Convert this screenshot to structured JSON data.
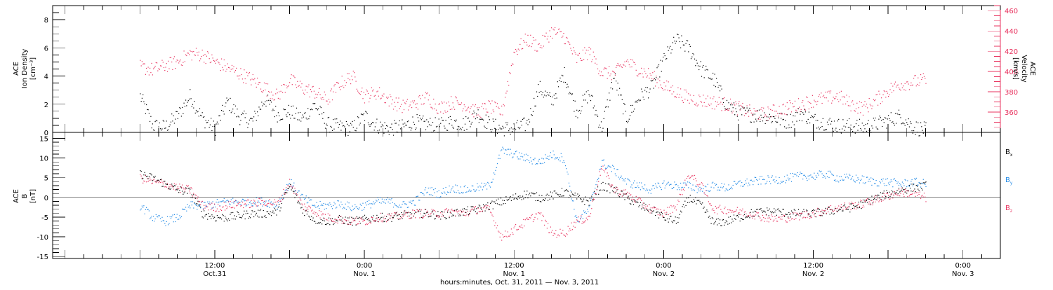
{
  "chart_data": [
    {
      "type": "scatter",
      "panel": "top",
      "ylabel_left": [
        "ACE",
        "Ion Density",
        "[cm⁻³]"
      ],
      "ylabel_right": [
        "ACE",
        "Velocity",
        "[km/s]"
      ],
      "ylim_left": [
        0,
        9
      ],
      "yticks_left": [
        "0",
        "2",
        "4",
        "6",
        "8"
      ],
      "ylim_right": [
        340,
        465
      ],
      "yticks_right": [
        "360",
        "380",
        "400",
        "420",
        "440",
        "460"
      ],
      "series": [
        {
          "axis": "left",
          "color": "#000000",
          "x": [
            0,
            2,
            4,
            6,
            8,
            10,
            12,
            14,
            16,
            18,
            20,
            22,
            24,
            26,
            28,
            30,
            32,
            34,
            36,
            38,
            40,
            42,
            44,
            46,
            48,
            50,
            52,
            54,
            56,
            58,
            60,
            62,
            64,
            66,
            68,
            70,
            72,
            74,
            76,
            78,
            80,
            82,
            84,
            86,
            88,
            90,
            92,
            94,
            96,
            98,
            100,
            102,
            104,
            106,
            108,
            110,
            112,
            114,
            116,
            118,
            120,
            122,
            124,
            126
          ],
          "y": [
            2.6,
            0.5,
            0.4,
            1.2,
            2.6,
            1.0,
            0.3,
            2.2,
            1.1,
            0.8,
            2.4,
            1.3,
            1.5,
            1.0,
            2.0,
            0.6,
            0.4,
            0.3,
            1.2,
            0.5,
            0.3,
            0.4,
            0.8,
            0.6,
            0.5,
            0.8,
            0.6,
            1.4,
            0.6,
            0.3,
            0.3,
            0.6,
            3.2,
            2.2,
            4.2,
            1.5,
            2.8,
            0.3,
            4.0,
            1.0,
            2.5,
            3.2,
            5.2,
            6.6,
            6.0,
            4.5,
            3.8,
            2.0,
            1.4,
            1.3,
            1.2,
            1.0,
            0.8,
            1.4,
            0.9,
            0.7,
            0.5,
            0.5,
            0.4,
            0.6,
            0.9,
            1.2,
            0.4,
            0.2
          ]
        },
        {
          "axis": "right",
          "color": "#e8335f",
          "x": [
            0,
            2,
            4,
            6,
            8,
            10,
            12,
            14,
            16,
            18,
            20,
            22,
            24,
            26,
            28,
            30,
            32,
            34,
            36,
            38,
            40,
            42,
            44,
            46,
            48,
            50,
            52,
            54,
            56,
            58,
            60,
            62,
            64,
            66,
            68,
            70,
            72,
            74,
            76,
            78,
            80,
            82,
            84,
            86,
            88,
            90,
            92,
            94,
            96,
            98,
            100,
            102,
            104,
            106,
            108,
            110,
            112,
            114,
            116,
            118,
            120,
            122,
            124,
            126
          ],
          "y": [
            405,
            402,
            406,
            410,
            418,
            417,
            410,
            404,
            398,
            392,
            384,
            376,
            392,
            384,
            380,
            372,
            388,
            396,
            376,
            380,
            372,
            366,
            368,
            375,
            364,
            370,
            368,
            360,
            366,
            360,
            420,
            432,
            425,
            440,
            435,
            412,
            420,
            400,
            398,
            410,
            402,
            396,
            386,
            380,
            374,
            372,
            370,
            368,
            364,
            360,
            358,
            362,
            365,
            368,
            372,
            374,
            376,
            368,
            364,
            372,
            382,
            388,
            390,
            392
          ]
        }
      ]
    },
    {
      "type": "scatter",
      "panel": "bottom",
      "ylabel_left": [
        "ACE",
        "B",
        "[nT]"
      ],
      "ylim": [
        -15.5,
        16.5
      ],
      "yticks": [
        "-15",
        "-10",
        "-5",
        "0",
        "5",
        "10",
        "15"
      ],
      "zero_line": true,
      "legend": [
        "B",
        "B",
        "B"
      ],
      "legend_subscripts": [
        "x",
        "y",
        "z"
      ],
      "legend_placement": "right",
      "series": [
        {
          "name": "Bx",
          "color": "#000000",
          "x": [
            0,
            2,
            4,
            6,
            8,
            10,
            12,
            14,
            16,
            18,
            20,
            22,
            24,
            26,
            28,
            30,
            32,
            34,
            36,
            38,
            40,
            42,
            44,
            46,
            48,
            50,
            52,
            54,
            56,
            58,
            60,
            62,
            64,
            66,
            68,
            70,
            72,
            74,
            76,
            78,
            80,
            82,
            84,
            86,
            88,
            90,
            92,
            94,
            96,
            98,
            100,
            102,
            104,
            106,
            108,
            110,
            112,
            114,
            116,
            118,
            120,
            122,
            124,
            126
          ],
          "y": [
            6,
            5,
            3.5,
            2,
            1.5,
            -4,
            -5,
            -5,
            -4.5,
            -4,
            -4,
            -3.5,
            3,
            -3,
            -5.5,
            -6,
            -5.5,
            -6,
            -5.5,
            -5,
            -5,
            -4.5,
            -4,
            -4,
            -4.5,
            -4,
            -3.5,
            -3,
            -2,
            -1,
            0,
            1,
            0,
            0.5,
            1.5,
            0,
            -1,
            3,
            2,
            0,
            -2,
            -3,
            -5,
            -6,
            0,
            -2,
            -6.5,
            -6,
            -5,
            -4,
            -3.5,
            -3.5,
            -4,
            -4,
            -4,
            -3.5,
            -3,
            -2.5,
            -1.5,
            0,
            1,
            2,
            2.5,
            3
          ]
        },
        {
          "name": "By",
          "color": "#1e88e5",
          "x": [
            0,
            2,
            4,
            6,
            8,
            10,
            12,
            14,
            16,
            18,
            20,
            22,
            24,
            26,
            28,
            30,
            32,
            34,
            36,
            38,
            40,
            42,
            44,
            46,
            48,
            50,
            52,
            54,
            56,
            58,
            60,
            62,
            64,
            66,
            68,
            70,
            72,
            74,
            76,
            78,
            80,
            82,
            84,
            86,
            88,
            90,
            92,
            94,
            96,
            98,
            100,
            102,
            104,
            106,
            108,
            110,
            112,
            114,
            116,
            118,
            120,
            122,
            124,
            126
          ],
          "y": [
            -2,
            -5,
            -6,
            -5,
            -2,
            -2,
            -1.5,
            -1,
            -1,
            -1,
            -1,
            -2,
            4,
            0,
            -2,
            -2,
            -1.5,
            -2.5,
            -2,
            -1,
            -1,
            -2,
            -1,
            2,
            1,
            2.5,
            2,
            2.5,
            3,
            12,
            11,
            10,
            9,
            11,
            10,
            -6,
            -3,
            9,
            7,
            4,
            3,
            2,
            3.5,
            3,
            3,
            2,
            3,
            2.5,
            3.5,
            4,
            4.5,
            4.5,
            5,
            5.5,
            5.5,
            6,
            5,
            5,
            4.5,
            4,
            4,
            3.5,
            4,
            3.5
          ]
        },
        {
          "name": "Bz",
          "color": "#e8335f",
          "x": [
            0,
            2,
            4,
            6,
            8,
            10,
            12,
            14,
            16,
            18,
            20,
            22,
            24,
            26,
            28,
            30,
            32,
            34,
            36,
            38,
            40,
            42,
            44,
            46,
            48,
            50,
            52,
            54,
            56,
            58,
            60,
            62,
            64,
            66,
            68,
            70,
            72,
            74,
            76,
            78,
            80,
            82,
            84,
            86,
            88,
            90,
            92,
            94,
            96,
            98,
            100,
            102,
            104,
            106,
            108,
            110,
            112,
            114,
            116,
            118,
            120,
            122,
            124,
            126
          ],
          "y": [
            5,
            4,
            3.5,
            2.5,
            2,
            -2,
            -2.5,
            -2,
            -1.5,
            -1.5,
            -1,
            -1.5,
            4,
            -2,
            -3.5,
            -5,
            -5.5,
            -6,
            -6,
            -5,
            -5,
            -4.5,
            -4,
            -4,
            -4,
            -3.5,
            -4,
            -3,
            -3,
            -10,
            -8,
            -6,
            -4,
            -9,
            -9,
            -6,
            -5,
            8,
            2,
            1,
            -1,
            -3,
            -4,
            -2,
            6,
            3,
            -3,
            -3,
            -3.5,
            -4,
            -5,
            -5.5,
            -5,
            -4.5,
            -4,
            -3,
            -2.5,
            -2,
            -1.5,
            -0.5,
            0.5,
            1.5,
            1,
            0
          ]
        }
      ]
    },
    {
      "type": "time_axis",
      "xlim": [
        -14,
        138
      ],
      "ticks": [
        {
          "x": 12,
          "top": "12:00",
          "bottom": "Oct.31"
        },
        {
          "x": 36,
          "top": "0:00",
          "bottom": "Nov. 1"
        },
        {
          "x": 60,
          "top": "12:00",
          "bottom": "Nov. 1"
        },
        {
          "x": 84,
          "top": "0:00",
          "bottom": "Nov. 2"
        },
        {
          "x": 108,
          "top": "12:00",
          "bottom": "Nov. 2"
        },
        {
          "x": 132,
          "top": "0:00",
          "bottom": "Nov. 3"
        }
      ],
      "xlabel": "hours:minutes, Oct. 31, 2011 — Nov.  3, 2011"
    }
  ]
}
